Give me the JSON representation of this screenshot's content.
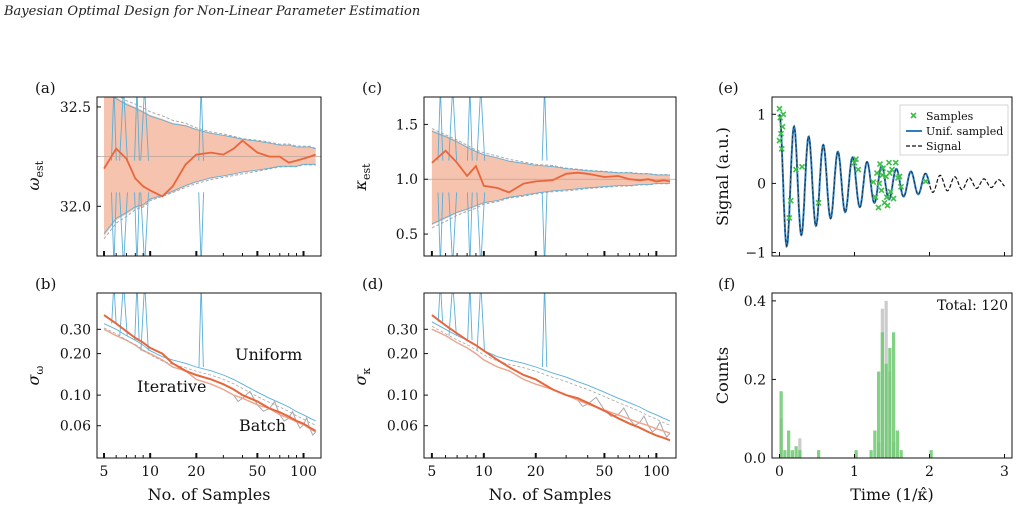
{
  "header": "Bayesian Optimal Design for Non-Linear Parameter Estimation",
  "colors": {
    "iterative": "#e8663c",
    "iterative_band": "#f6c3ae",
    "uniform": "#5aaed8",
    "batch": "#a8a8a8",
    "samples": "#3dbf4a",
    "unif_sampled": "#2e7fbf",
    "signal": "#111111",
    "hist_green": "#6cc96f",
    "hist_grey": "#cccccc"
  },
  "chart_data": [
    {
      "panel": "(a)",
      "type": "line",
      "ylabel": "ω_est",
      "xscale": "log",
      "ylim": [
        31.75,
        32.55
      ],
      "yticks": [
        "32.0",
        "32.5"
      ],
      "ytick_values": [
        32.0,
        32.5
      ],
      "xlim": [
        4.5,
        130
      ],
      "reference": 32.25,
      "x": [
        5,
        6,
        7,
        8,
        9,
        10,
        12,
        14,
        17,
        20,
        25,
        30,
        35,
        40,
        50,
        60,
        70,
        80,
        90,
        100,
        110,
        120
      ],
      "series": [
        {
          "name": "Iterative",
          "values": [
            32.19,
            32.29,
            32.24,
            32.14,
            32.1,
            32.08,
            32.05,
            32.1,
            32.21,
            32.26,
            32.27,
            32.26,
            32.29,
            32.33,
            32.27,
            32.25,
            32.25,
            32.22,
            32.23,
            32.24,
            32.25,
            32.26
          ]
        },
        {
          "name": "Iterative band upper",
          "values": [
            32.62,
            32.55,
            32.52,
            32.5,
            32.48,
            32.46,
            32.44,
            32.42,
            32.41,
            32.39,
            32.37,
            32.36,
            32.35,
            32.34,
            32.33,
            32.32,
            32.31,
            32.31,
            32.3,
            32.3,
            32.3,
            32.29
          ]
        },
        {
          "name": "Iterative band lower",
          "values": [
            31.85,
            31.93,
            31.96,
            31.99,
            32.0,
            32.03,
            32.05,
            32.07,
            32.1,
            32.12,
            32.14,
            32.15,
            32.16,
            32.17,
            32.18,
            32.19,
            32.2,
            32.2,
            32.2,
            32.21,
            32.21,
            32.21
          ]
        }
      ]
    },
    {
      "panel": "(b)",
      "type": "line",
      "ylabel": "σ_ω",
      "xlabel": "No. of Samples",
      "xscale": "log",
      "yscale": "log",
      "ylim": [
        0.035,
        0.55
      ],
      "xlim": [
        4.5,
        130
      ],
      "xticks": [
        "5",
        "10",
        "20",
        "50",
        "100"
      ],
      "xtick_values": [
        5,
        10,
        20,
        50,
        100
      ],
      "yticks": [
        "0.06",
        "0.10",
        "0.20",
        "0.30"
      ],
      "ytick_values": [
        0.06,
        0.1,
        0.2,
        0.3
      ],
      "annotations": [
        "Uniform",
        "Iterative",
        "Batch"
      ],
      "x": [
        5,
        6,
        7,
        8,
        9,
        10,
        12,
        14,
        17,
        20,
        25,
        30,
        35,
        40,
        50,
        60,
        70,
        80,
        90,
        100,
        110,
        120
      ],
      "series": [
        {
          "name": "Iterative",
          "values": [
            0.38,
            0.33,
            0.29,
            0.26,
            0.24,
            0.22,
            0.2,
            0.17,
            0.15,
            0.14,
            0.13,
            0.12,
            0.11,
            0.1,
            0.09,
            0.08,
            0.075,
            0.07,
            0.065,
            0.062,
            0.058,
            0.055
          ]
        },
        {
          "name": "Batch",
          "values": [
            0.3,
            0.27,
            0.25,
            0.23,
            0.21,
            0.2,
            0.18,
            0.16,
            0.15,
            0.13,
            0.12,
            0.11,
            0.1,
            0.095,
            0.085,
            0.08,
            0.072,
            0.068,
            0.064,
            0.061,
            0.057,
            0.054
          ]
        },
        {
          "name": "Uniform",
          "values": [
            0.33,
            0.3,
            0.27,
            0.25,
            0.23,
            0.21,
            0.19,
            0.18,
            0.17,
            0.16,
            0.15,
            0.14,
            0.13,
            0.12,
            0.105,
            0.095,
            0.088,
            0.082,
            0.076,
            0.072,
            0.068,
            0.065
          ]
        }
      ]
    },
    {
      "panel": "(c)",
      "type": "line",
      "ylabel": "κ_est",
      "xscale": "log",
      "ylim": [
        0.3,
        1.75
      ],
      "yticks": [
        "0.5",
        "1.0",
        "1.5"
      ],
      "ytick_values": [
        0.5,
        1.0,
        1.5
      ],
      "xlim": [
        4.5,
        130
      ],
      "reference": 1.0,
      "x": [
        5,
        6,
        7,
        8,
        9,
        10,
        12,
        14,
        17,
        20,
        25,
        30,
        35,
        40,
        50,
        60,
        70,
        80,
        90,
        100,
        110,
        120
      ],
      "series": [
        {
          "name": "Iterative",
          "values": [
            1.15,
            1.26,
            1.15,
            1.03,
            1.12,
            0.94,
            0.92,
            0.88,
            0.96,
            0.98,
            0.99,
            1.05,
            1.06,
            1.05,
            1.02,
            1.03,
            1.0,
            0.99,
            1.0,
            0.98,
            0.99,
            0.98
          ]
        },
        {
          "name": "Iterative band upper",
          "values": [
            1.45,
            1.4,
            1.35,
            1.3,
            1.26,
            1.23,
            1.2,
            1.17,
            1.15,
            1.13,
            1.12,
            1.1,
            1.09,
            1.08,
            1.07,
            1.06,
            1.06,
            1.05,
            1.05,
            1.04,
            1.04,
            1.04
          ]
        },
        {
          "name": "Iterative band lower",
          "values": [
            0.58,
            0.64,
            0.69,
            0.72,
            0.75,
            0.78,
            0.8,
            0.83,
            0.85,
            0.87,
            0.89,
            0.9,
            0.91,
            0.92,
            0.93,
            0.94,
            0.94,
            0.95,
            0.95,
            0.96,
            0.96,
            0.96
          ]
        }
      ]
    },
    {
      "panel": "(d)",
      "type": "line",
      "ylabel": "σ_κ",
      "xlabel": "No. of Samples",
      "xscale": "log",
      "yscale": "log",
      "ylim": [
        0.035,
        0.55
      ],
      "xlim": [
        4.5,
        130
      ],
      "xticks": [
        "5",
        "10",
        "20",
        "50",
        "100"
      ],
      "xtick_values": [
        5,
        10,
        20,
        50,
        100
      ],
      "yticks": [
        "0.06",
        "0.10",
        "0.20",
        "0.30"
      ],
      "ytick_values": [
        0.06,
        0.1,
        0.2,
        0.3
      ],
      "x": [
        5,
        6,
        7,
        8,
        9,
        10,
        12,
        14,
        17,
        20,
        25,
        30,
        35,
        40,
        50,
        60,
        70,
        80,
        90,
        100,
        110,
        120
      ],
      "series": [
        {
          "name": "Iterative",
          "values": [
            0.38,
            0.32,
            0.28,
            0.25,
            0.23,
            0.21,
            0.18,
            0.16,
            0.14,
            0.13,
            0.11,
            0.1,
            0.095,
            0.088,
            0.077,
            0.068,
            0.062,
            0.058,
            0.054,
            0.051,
            0.049,
            0.047
          ]
        },
        {
          "name": "Batch",
          "values": [
            0.3,
            0.27,
            0.24,
            0.22,
            0.2,
            0.18,
            0.16,
            0.15,
            0.13,
            0.12,
            0.11,
            0.1,
            0.092,
            0.086,
            0.078,
            0.072,
            0.067,
            0.063,
            0.06,
            0.057,
            0.055,
            0.053
          ]
        },
        {
          "name": "Uniform",
          "values": [
            0.34,
            0.3,
            0.27,
            0.25,
            0.23,
            0.21,
            0.19,
            0.18,
            0.17,
            0.16,
            0.145,
            0.135,
            0.125,
            0.118,
            0.105,
            0.095,
            0.088,
            0.082,
            0.076,
            0.072,
            0.068,
            0.065
          ]
        }
      ]
    },
    {
      "panel": "(e)",
      "type": "line",
      "ylabel": "Signal (a.u.)",
      "xlim": [
        -0.1,
        3.1
      ],
      "ylim": [
        -1.05,
        1.25
      ],
      "yticks": [
        "1",
        "0",
        "−1"
      ],
      "ytick_values": [
        1,
        0,
        -1
      ],
      "legend": [
        "Samples",
        "Unif. sampled",
        "Signal"
      ],
      "legend_position": "top-right",
      "signal_model": {
        "omega": 32.25,
        "kappa": 1.0
      },
      "samples": [
        [
          0.0,
          1.08
        ],
        [
          0.01,
          0.95
        ],
        [
          0.02,
          0.72
        ],
        [
          0.03,
          0.5
        ],
        [
          0.04,
          0.82
        ],
        [
          0.05,
          1.0
        ],
        [
          0.0,
          0.62
        ],
        [
          0.13,
          -0.5
        ],
        [
          0.15,
          -0.25
        ],
        [
          0.22,
          0.2
        ],
        [
          0.3,
          0.24
        ],
        [
          0.52,
          -0.28
        ],
        [
          1.0,
          0.3
        ],
        [
          1.02,
          0.35
        ],
        [
          1.05,
          0.2
        ],
        [
          1.25,
          0.02
        ],
        [
          1.28,
          -0.2
        ],
        [
          1.3,
          0.15
        ],
        [
          1.32,
          -0.35
        ],
        [
          1.34,
          0.28
        ],
        [
          1.36,
          -0.1
        ],
        [
          1.38,
          0.22
        ],
        [
          1.4,
          -0.28
        ],
        [
          1.42,
          0.1
        ],
        [
          1.44,
          -0.32
        ],
        [
          1.46,
          0.3
        ],
        [
          1.48,
          -0.12
        ],
        [
          1.5,
          0.2
        ],
        [
          1.52,
          -0.22
        ],
        [
          1.55,
          0.3
        ],
        [
          1.58,
          0.08
        ],
        [
          1.6,
          0.1
        ],
        [
          1.62,
          -0.05
        ],
        [
          1.33,
          0.0
        ],
        [
          1.37,
          0.12
        ],
        [
          1.43,
          -0.2
        ],
        [
          1.47,
          0.15
        ],
        [
          1.95,
          0.03
        ]
      ]
    },
    {
      "panel": "(f)",
      "type": "bar",
      "xlabel": "Time (1/κ̂)",
      "ylabel": "Counts",
      "xlim": [
        -0.1,
        3.1
      ],
      "ylim": [
        0,
        0.42
      ],
      "xticks": [
        "0",
        "1",
        "2",
        "3"
      ],
      "xtick_values": [
        0,
        1,
        2,
        3
      ],
      "yticks": [
        "0.0",
        "0.2",
        "0.4"
      ],
      "ytick_values": [
        0.0,
        0.2,
        0.4
      ],
      "annotation": "Total: 120",
      "bin_width": 0.05,
      "series": [
        {
          "name": "green",
          "bins": [
            [
              0.0,
              0.17
            ],
            [
              0.05,
              0.02
            ],
            [
              0.1,
              0.07
            ],
            [
              0.15,
              0.02
            ],
            [
              0.2,
              0.03
            ],
            [
              0.25,
              0.02
            ],
            [
              0.5,
              0.02
            ],
            [
              1.0,
              0.02
            ],
            [
              1.2,
              0.02
            ],
            [
              1.25,
              0.07
            ],
            [
              1.3,
              0.22
            ],
            [
              1.35,
              0.32
            ],
            [
              1.4,
              0.24
            ],
            [
              1.45,
              0.28
            ],
            [
              1.5,
              0.32
            ],
            [
              1.55,
              0.07
            ],
            [
              1.6,
              0.02
            ],
            [
              2.0,
              0.02
            ]
          ]
        },
        {
          "name": "grey",
          "bins": [
            [
              0.0,
              0.1
            ],
            [
              0.25,
              0.05
            ],
            [
              1.3,
              0.04
            ],
            [
              1.35,
              0.38
            ],
            [
              1.4,
              0.4
            ],
            [
              1.45,
              0.22
            ],
            [
              1.5,
              0.04
            ]
          ]
        }
      ]
    }
  ]
}
